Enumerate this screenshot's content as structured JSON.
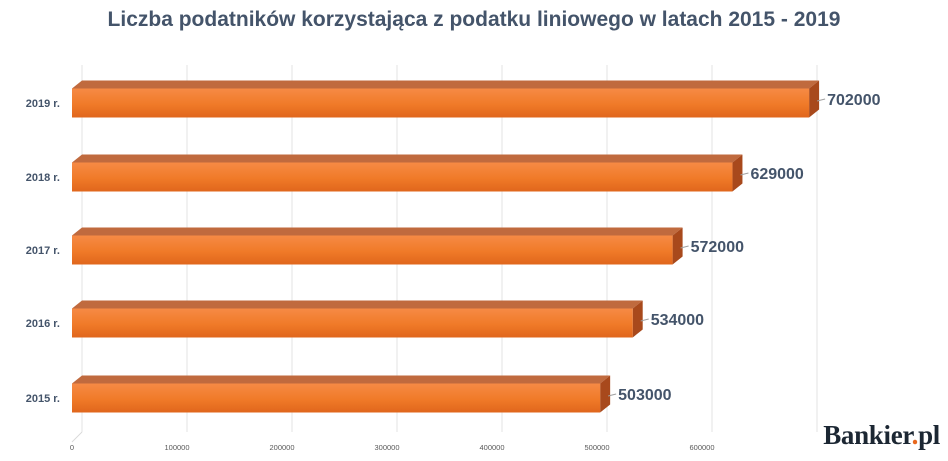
{
  "chart_data": {
    "type": "bar",
    "orientation": "horizontal",
    "title": "Liczba podatników korzystająca z podatku liniowego w latach 2015 - 2019",
    "categories": [
      "2015 r.",
      "2016 r.",
      "2017 r.",
      "2018 r.",
      "2019 r."
    ],
    "values": [
      503000,
      534000,
      572000,
      629000,
      702000
    ],
    "data_labels": [
      "503000",
      "534000",
      "572000",
      "629000",
      "702000"
    ],
    "x_ticks": [
      "0",
      "100000",
      "200000",
      "300000",
      "400000",
      "500000",
      "600000"
    ],
    "xlim": [
      0,
      700000
    ],
    "grid": true,
    "legend": "none",
    "bar_color": "#f07a28",
    "bar_top_color": "#c06a3e",
    "bar_side_color": "#a8491c"
  },
  "brand": {
    "name_prefix": "Bankier",
    "name_dot": ".",
    "name_suffix": "pl"
  }
}
